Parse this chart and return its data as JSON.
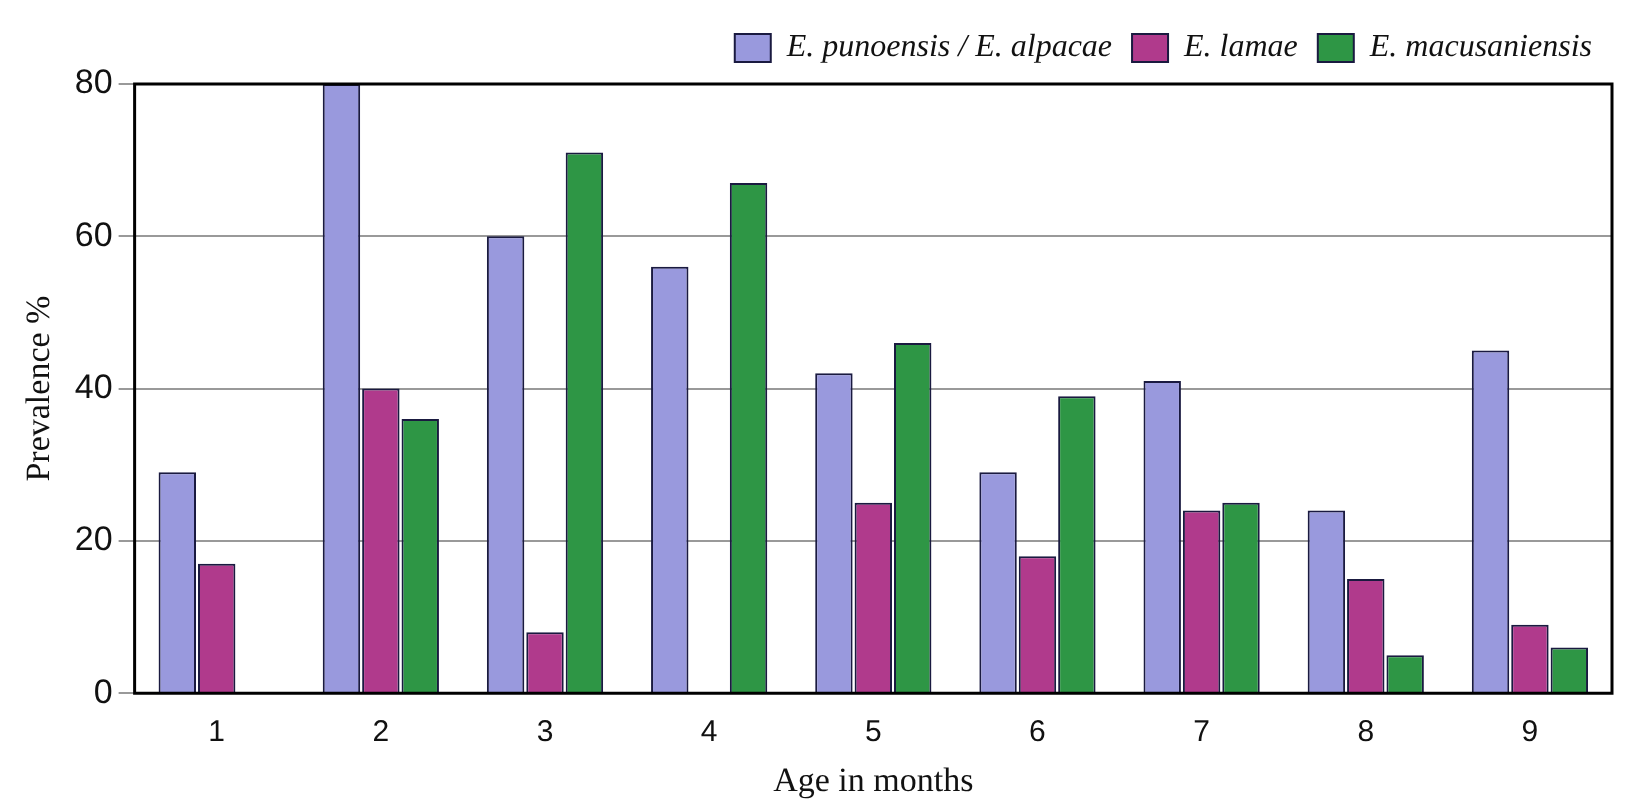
{
  "chart_data": {
    "type": "bar",
    "xlabel": "Age in months",
    "ylabel": "Prevalence %",
    "categories": [
      "1",
      "2",
      "3",
      "4",
      "5",
      "6",
      "7",
      "8",
      "9"
    ],
    "series": [
      {
        "name": "E. punoensis / E. alpacae",
        "color": "#9999dd",
        "values": [
          29,
          80,
          60,
          56,
          42,
          29,
          41,
          24,
          45
        ]
      },
      {
        "name": "E. lamae",
        "color": "#b03a8c",
        "values": [
          17,
          40,
          8,
          0,
          25,
          18,
          24,
          15,
          9
        ]
      },
      {
        "name": "E. macusaniensis",
        "color": "#2e9645",
        "values": [
          0,
          36,
          71,
          67,
          46,
          39,
          25,
          5,
          6
        ]
      }
    ],
    "ylim": [
      0,
      80
    ],
    "yticks": [
      0,
      20,
      40,
      60,
      80
    ],
    "grid": "y",
    "legend": "top right"
  }
}
